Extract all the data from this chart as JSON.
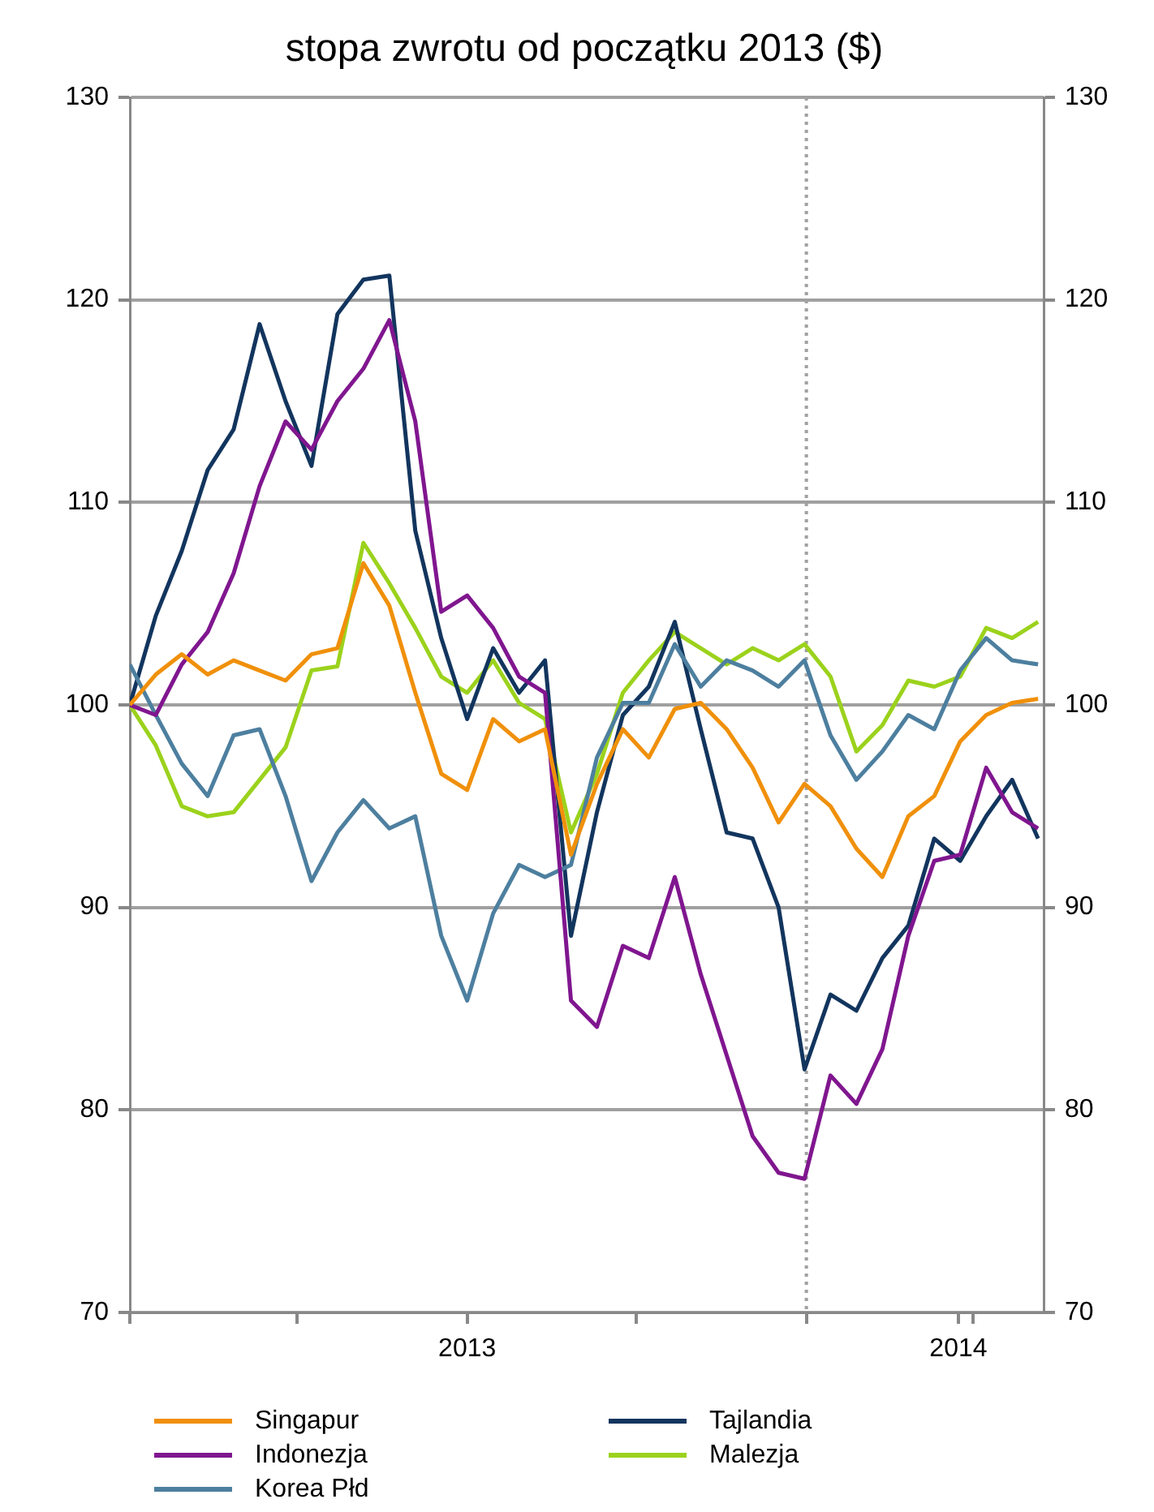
{
  "chart_data": {
    "type": "line",
    "title": "stopa zwrotu od początku 2013 ($)",
    "x": [
      "2013-01-01",
      "2013-01-15",
      "2013-01-29",
      "2013-02-12",
      "2013-02-26",
      "2013-03-12",
      "2013-03-26",
      "2013-04-09",
      "2013-04-23",
      "2013-05-07",
      "2013-05-21",
      "2013-06-04",
      "2013-06-18",
      "2013-07-02",
      "2013-07-16",
      "2013-07-30",
      "2013-08-13",
      "2013-08-27",
      "2013-09-10",
      "2013-09-24",
      "2013-10-08",
      "2013-10-22",
      "2013-11-05",
      "2013-11-19",
      "2013-12-03",
      "2013-12-17",
      "2013-12-31",
      "2014-01-14",
      "2014-01-28",
      "2014-02-11",
      "2014-02-25",
      "2014-03-11",
      "2014-03-25",
      "2014-04-08",
      "2014-04-22",
      "2014-05-06"
    ],
    "series": [
      {
        "name": "Singapur",
        "color": "#f0900a",
        "values": [
          100,
          101.5,
          102.5,
          101.5,
          102.2,
          101.7,
          101.2,
          102.5,
          102.8,
          107,
          104.9,
          100.6,
          96.6,
          95.8,
          99.3,
          98.2,
          98.8,
          92.6,
          96.1,
          98.8,
          97.4,
          99.8,
          100.1,
          98.8,
          96.9,
          94.2,
          96.1,
          95,
          92.9,
          91.5,
          94.5,
          95.5,
          98.2,
          99.5,
          100.1,
          100.3
        ]
      },
      {
        "name": "Indonezja",
        "color": "#80168f",
        "values": [
          100,
          99.5,
          102,
          103.6,
          106.5,
          110.8,
          114,
          112.6,
          115,
          116.6,
          119,
          114,
          104.6,
          105.4,
          103.8,
          101.4,
          100.6,
          85.4,
          84.1,
          88.1,
          87.5,
          91.5,
          86.7,
          82.7,
          78.7,
          76.9,
          76.6,
          81.7,
          80.3,
          83,
          88.6,
          92.3,
          92.6,
          96.9,
          94.7,
          93.9
        ]
      },
      {
        "name": "Korea Płd",
        "color": "#4d7f9f",
        "values": [
          102,
          99.5,
          97.1,
          95.5,
          98.5,
          98.8,
          95.5,
          91.3,
          93.7,
          95.3,
          93.9,
          94.5,
          88.6,
          85.4,
          89.7,
          92.1,
          91.5,
          92.1,
          97.4,
          100.1,
          100.1,
          103,
          100.9,
          102.2,
          101.7,
          100.9,
          102.2,
          98.5,
          96.3,
          97.7,
          99.5,
          98.8,
          101.7,
          103.3,
          102.2,
          102
        ]
      },
      {
        "name": "Tajlandia",
        "color": "#12355e",
        "values": [
          100,
          104.4,
          107.6,
          111.6,
          113.6,
          118.8,
          115,
          111.8,
          119.3,
          121,
          121.2,
          108.6,
          103.3,
          99.3,
          102.8,
          100.6,
          102.2,
          88.6,
          94.7,
          99.5,
          100.9,
          104.1,
          98.8,
          93.7,
          93.4,
          90,
          82,
          85.7,
          84.9,
          87.5,
          89.1,
          93.4,
          92.3,
          94.5,
          96.3,
          93.4
        ]
      },
      {
        "name": "Malezja",
        "color": "#9bd21c",
        "values": [
          100,
          98,
          95,
          94.5,
          94.7,
          96.3,
          97.9,
          101.7,
          101.9,
          108,
          106,
          103.8,
          101.4,
          100.6,
          102.2,
          100.1,
          99.3,
          93.7,
          96.6,
          100.6,
          102.2,
          103.6,
          102.8,
          102,
          102.8,
          102.2,
          103,
          101.4,
          97.7,
          99,
          101.2,
          100.9,
          101.4,
          103.8,
          103.3,
          104.1
        ]
      }
    ],
    "xlim": [
      "2013-01-01",
      "2014-05-09"
    ],
    "xticks": [
      {
        "value": "2013-01-01",
        "label": null
      },
      {
        "value": "2013-04-01",
        "label": null
      },
      {
        "value": "2013-07-02",
        "label": "2013"
      },
      {
        "value": "2013-10-01",
        "label": null
      },
      {
        "value": "2014-01-01",
        "label": null
      },
      {
        "value": "2014-03-24",
        "label": "2014"
      },
      {
        "value": "2014-04-01",
        "label": null
      }
    ],
    "ylim": [
      70,
      130
    ],
    "yticks": [
      70,
      80,
      90,
      100,
      110,
      120,
      130
    ],
    "y2lim": [
      70,
      130
    ],
    "y2ticks": [
      70,
      80,
      90,
      100,
      110,
      120,
      130
    ],
    "ref_lines": [
      {
        "axis": "x",
        "value": "2014-01-01",
        "label": null,
        "color": "#a0a0a0",
        "line_style": "dotted"
      }
    ],
    "grid": "y",
    "legend": "bottom",
    "marker": "none",
    "line_style": "solid"
  }
}
